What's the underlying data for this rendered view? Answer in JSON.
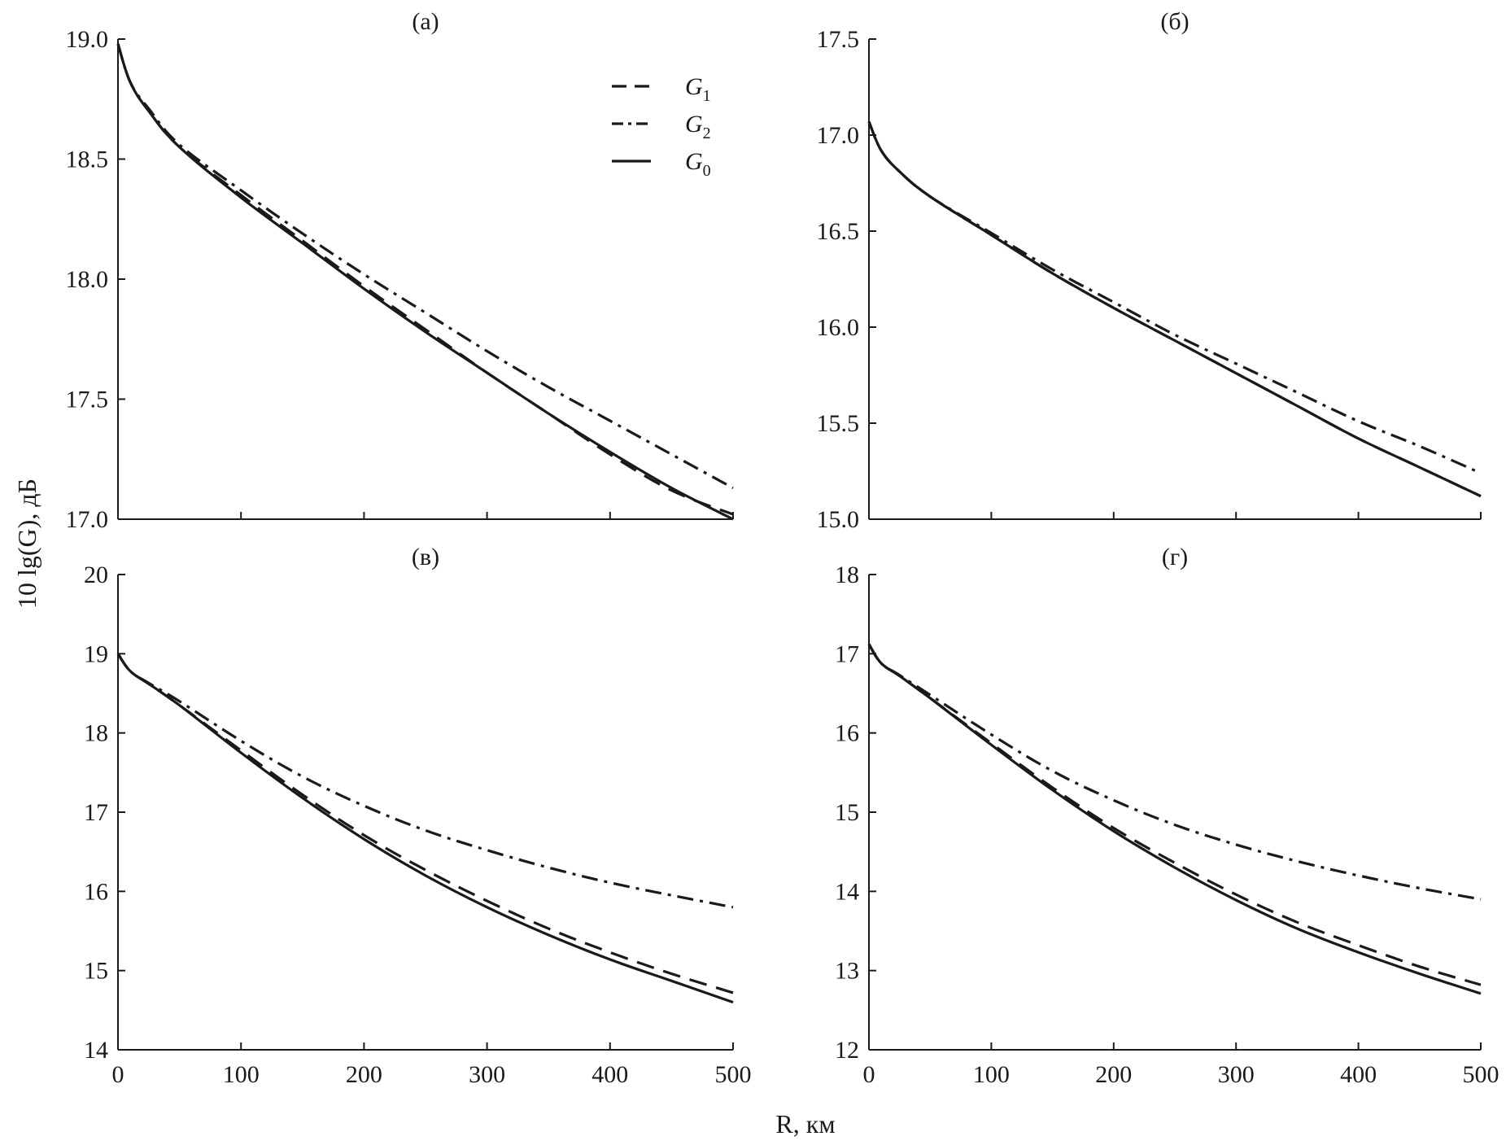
{
  "figure": {
    "ylabel": "10 lg(G), дБ",
    "xlabel": "R, км"
  },
  "legend": [
    {
      "key": "G1",
      "symbol": "G",
      "sub": "1",
      "style": "dashed"
    },
    {
      "key": "G2",
      "symbol": "G",
      "sub": "2",
      "style": "dashdot"
    },
    {
      "key": "G0",
      "symbol": "G",
      "sub": "0",
      "style": "solid"
    }
  ],
  "colors": {
    "line": "#1a1a1a",
    "axis": "#1a1a1a",
    "background": "#ffffff"
  },
  "chart_data": [
    {
      "type": "line",
      "title": "(а)",
      "xlabel": "R, км",
      "ylabel": "10 lg(G), дБ",
      "xlim": [
        0,
        500
      ],
      "ylim": [
        17.0,
        19.0
      ],
      "xticks": [
        "0",
        "100",
        "200",
        "300",
        "400",
        "500"
      ],
      "yticks": [
        "17.0",
        "17.5",
        "18.0",
        "18.5",
        "19.0"
      ],
      "legend": "top-right",
      "grid": false,
      "x": [
        0,
        10,
        25,
        50,
        100,
        150,
        200,
        250,
        300,
        350,
        400,
        450,
        500
      ],
      "series": [
        {
          "name": "G1",
          "style": "dashed",
          "values": [
            18.98,
            18.82,
            18.7,
            18.55,
            18.35,
            18.16,
            17.97,
            17.79,
            17.61,
            17.44,
            17.27,
            17.12,
            17.02
          ]
        },
        {
          "name": "G2",
          "style": "dashdot",
          "values": [
            18.98,
            18.82,
            18.71,
            18.56,
            18.37,
            18.19,
            18.02,
            17.86,
            17.7,
            17.55,
            17.41,
            17.27,
            17.13
          ]
        },
        {
          "name": "G0",
          "style": "solid",
          "values": [
            18.98,
            18.82,
            18.7,
            18.55,
            18.34,
            18.15,
            17.96,
            17.78,
            17.61,
            17.44,
            17.28,
            17.13,
            17.0
          ]
        }
      ]
    },
    {
      "type": "line",
      "title": "(б)",
      "xlim": [
        0,
        500
      ],
      "ylim": [
        15.0,
        17.5
      ],
      "xticks": [
        "0",
        "100",
        "200",
        "300",
        "400",
        "500"
      ],
      "yticks": [
        "15.0",
        "15.5",
        "16.0",
        "16.5",
        "17.0",
        "17.5"
      ],
      "grid": false,
      "x": [
        0,
        10,
        25,
        50,
        100,
        150,
        200,
        250,
        300,
        350,
        400,
        450,
        500
      ],
      "series": [
        {
          "name": "G1",
          "style": "dashed",
          "values": [
            17.07,
            16.92,
            16.81,
            16.68,
            16.48,
            16.28,
            16.1,
            15.93,
            15.76,
            15.59,
            15.42,
            15.27,
            15.12
          ]
        },
        {
          "name": "G2",
          "style": "dashdot",
          "values": [
            17.07,
            16.92,
            16.81,
            16.68,
            16.49,
            16.3,
            16.13,
            15.96,
            15.81,
            15.66,
            15.51,
            15.38,
            15.24
          ]
        },
        {
          "name": "G0",
          "style": "solid",
          "values": [
            17.07,
            16.92,
            16.81,
            16.68,
            16.48,
            16.28,
            16.1,
            15.93,
            15.76,
            15.59,
            15.42,
            15.27,
            15.12
          ]
        }
      ]
    },
    {
      "type": "line",
      "title": "(в)",
      "xlim": [
        0,
        500
      ],
      "ylim": [
        14,
        20
      ],
      "xticks": [
        "0",
        "100",
        "200",
        "300",
        "400",
        "500"
      ],
      "yticks": [
        "14",
        "15",
        "16",
        "17",
        "18",
        "19",
        "20"
      ],
      "grid": false,
      "x": [
        0,
        10,
        25,
        50,
        100,
        150,
        200,
        250,
        300,
        350,
        400,
        450,
        500
      ],
      "series": [
        {
          "name": "G1",
          "style": "dashed",
          "values": [
            19.0,
            18.78,
            18.62,
            18.35,
            17.78,
            17.22,
            16.71,
            16.27,
            15.88,
            15.53,
            15.23,
            14.96,
            14.72
          ]
        },
        {
          "name": "G2",
          "style": "dashdot",
          "values": [
            19.0,
            18.78,
            18.63,
            18.4,
            17.9,
            17.45,
            17.08,
            16.77,
            16.52,
            16.3,
            16.11,
            15.95,
            15.8
          ]
        },
        {
          "name": "G0",
          "style": "solid",
          "values": [
            19.0,
            18.78,
            18.62,
            18.35,
            17.75,
            17.18,
            16.66,
            16.2,
            15.8,
            15.45,
            15.14,
            14.87,
            14.6
          ]
        }
      ]
    },
    {
      "type": "line",
      "title": "(г)",
      "xlim": [
        0,
        500
      ],
      "ylim": [
        12,
        18
      ],
      "xticks": [
        "0",
        "100",
        "200",
        "300",
        "400",
        "500"
      ],
      "yticks": [
        "12",
        "13",
        "14",
        "15",
        "16",
        "17",
        "18"
      ],
      "grid": false,
      "x": [
        0,
        10,
        25,
        50,
        100,
        150,
        200,
        250,
        300,
        350,
        400,
        450,
        500
      ],
      "series": [
        {
          "name": "G1",
          "style": "dashed",
          "values": [
            17.12,
            16.88,
            16.72,
            16.44,
            15.87,
            15.31,
            14.8,
            14.36,
            13.96,
            13.61,
            13.32,
            13.05,
            12.82
          ]
        },
        {
          "name": "G2",
          "style": "dashdot",
          "values": [
            17.12,
            16.88,
            16.73,
            16.48,
            15.98,
            15.52,
            15.15,
            14.84,
            14.59,
            14.38,
            14.2,
            14.04,
            13.9
          ]
        },
        {
          "name": "G0",
          "style": "solid",
          "values": [
            17.12,
            16.88,
            16.72,
            16.44,
            15.85,
            15.28,
            14.76,
            14.3,
            13.89,
            13.53,
            13.23,
            12.96,
            12.71
          ]
        }
      ]
    }
  ]
}
